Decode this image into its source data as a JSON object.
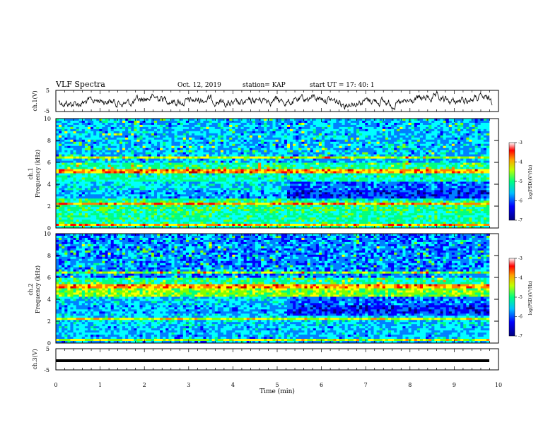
{
  "header": {
    "title": "VLF Spectra",
    "date": "Oct. 12, 2019",
    "station": "station= KAP",
    "start": "start  UT  =   17: 40: 1"
  },
  "chart_data": {
    "type": "heatmap",
    "x_label": "Time  (min)",
    "xlim": [
      0,
      10
    ],
    "x_ticks": [
      "0",
      "1",
      "2",
      "3",
      "4",
      "5",
      "6",
      "7",
      "8",
      "9",
      "10"
    ],
    "waveform_ch1": {
      "ylabel": "ch.1(V)",
      "ylim": [
        -5,
        5
      ],
      "y_ticks": [
        "5",
        "-5"
      ],
      "color": "#000000"
    },
    "spectrogram_ch1": {
      "ylabel_line1": "ch.1",
      "ylabel_line2": "Frequency  (kHz)",
      "ylim": [
        0,
        10
      ],
      "y_ticks": [
        "0",
        "2",
        "4",
        "6",
        "8",
        "10"
      ],
      "colorbar": {
        "label": "log(PSD)(V²/Hz)",
        "range": [
          -7,
          -3
        ],
        "ticks": [
          "-3",
          "-4",
          "-5",
          "-6",
          "-7"
        ]
      }
    },
    "spectrogram_ch2": {
      "ylabel_line1": "ch.2",
      "ylabel_line2": "Frequency  (kHz)",
      "ylim": [
        0,
        10
      ],
      "y_ticks": [
        "0",
        "2",
        "4",
        "6",
        "8",
        "10"
      ],
      "colorbar": {
        "label": "log(PSD)(V²/Hz)",
        "range": [
          -7,
          -3
        ],
        "ticks": [
          "-3",
          "-4",
          "-5",
          "-6",
          "-7"
        ]
      }
    },
    "waveform_ch3": {
      "ylabel": "ch.3(V)",
      "ylim": [
        -5,
        5
      ],
      "y_ticks": [
        "5",
        "-5"
      ],
      "color": "#000000"
    },
    "colormap": [
      "#000080",
      "#0000ff",
      "#0080ff",
      "#00ffff",
      "#00ff80",
      "#80ff00",
      "#ffff00",
      "#ff8000",
      "#ff0000",
      "#c00000",
      "#ffffff"
    ]
  }
}
